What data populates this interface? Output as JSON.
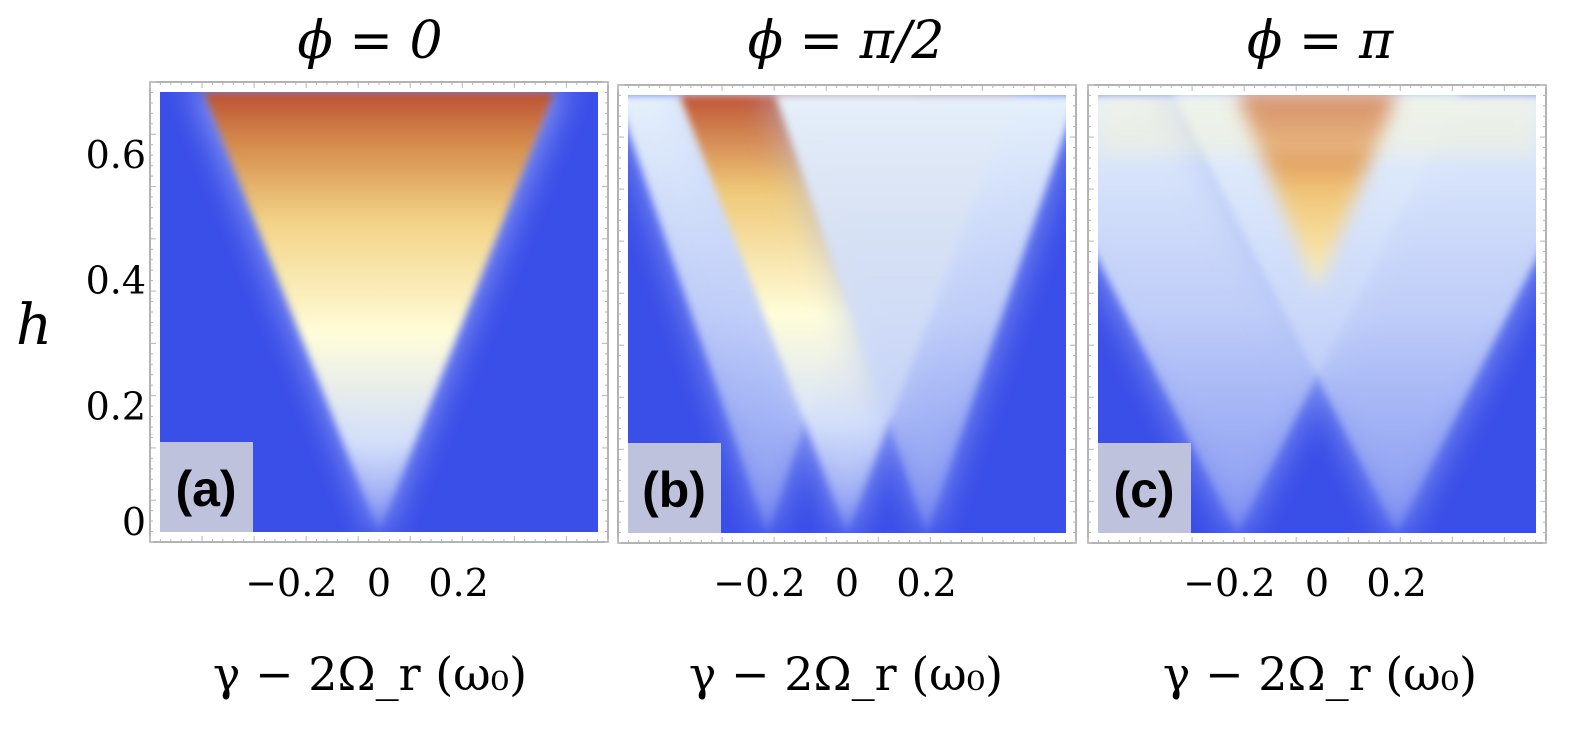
{
  "chart_data": [
    {
      "type": "heatmap",
      "panel_label": "(a)",
      "title": "ϕ = 0",
      "xlabel": "γ − 2Ω_r  (ω₀)",
      "ylabel": "h",
      "xlim": [
        -0.55,
        0.55
      ],
      "ylim": [
        0,
        0.7
      ],
      "xticks": [
        -0.2,
        0,
        0.2
      ],
      "xtick_labels": [
        "−0.2",
        "0",
        "0.2"
      ],
      "yticks": [
        0,
        0.2,
        0.4,
        0.6
      ],
      "ytick_labels": [
        "0",
        "0.2",
        "0.4",
        "0.6"
      ],
      "resonance_centers": [
        0
      ],
      "background_color": "#3a4ee8"
    },
    {
      "type": "heatmap",
      "panel_label": "(b)",
      "title": "ϕ = π/2",
      "xlabel": "γ − 2Ω_r  (ω₀)",
      "ylabel": "",
      "xlim": [
        -0.55,
        0.55
      ],
      "ylim": [
        0,
        0.7
      ],
      "xticks": [
        -0.2,
        0,
        0.2
      ],
      "xtick_labels": [
        "−0.2",
        "0",
        "0.2"
      ],
      "resonance_centers": [
        -0.2,
        0,
        0.2
      ],
      "background_color": "#3a4ee8"
    },
    {
      "type": "heatmap",
      "panel_label": "(c)",
      "title": "ϕ = π",
      "xlabel": "γ − 2Ω_r  (ω₀)",
      "ylabel": "",
      "xlim": [
        -0.55,
        0.55
      ],
      "ylim": [
        0,
        0.7
      ],
      "xticks": [
        -0.2,
        0,
        0.2
      ],
      "xtick_labels": [
        "−0.2",
        "0",
        "0.2"
      ],
      "resonance_centers": [
        -0.2,
        0.2
      ],
      "background_color": "#3a4ee8"
    }
  ]
}
